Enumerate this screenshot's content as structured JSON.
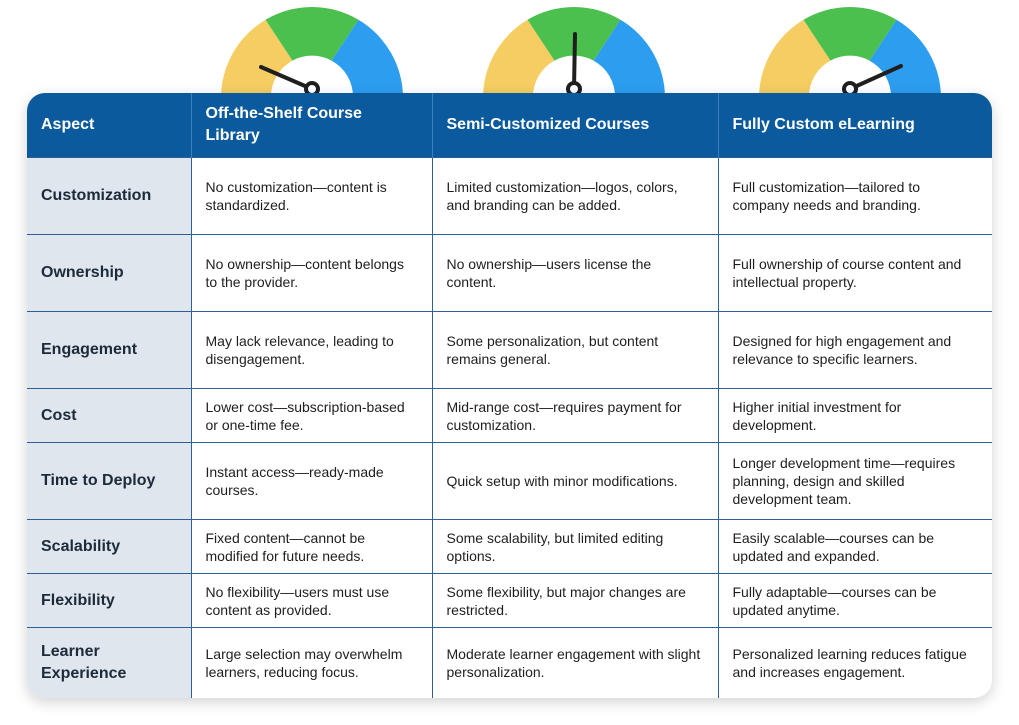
{
  "colors": {
    "header_bg": "#0c5a9e",
    "aspect_bg": "#dfe6ee",
    "gauge_yellow": "#f5cd63",
    "gauge_green": "#4cc04e",
    "gauge_blue": "#2d9df0",
    "needle": "#1f1f1f"
  },
  "gauges": [
    {
      "needle_direction": "low",
      "icon": "speedometer-icon"
    },
    {
      "needle_direction": "middle",
      "icon": "speedometer-icon"
    },
    {
      "needle_direction": "high",
      "icon": "speedometer-icon"
    }
  ],
  "table": {
    "headers": [
      "Aspect",
      "Off-the-Shelf Course Library",
      "Semi-Customized Courses",
      "Fully Custom eLearning"
    ],
    "rows": [
      {
        "aspect": "Customization",
        "cells": [
          "No customization—content is standardized.",
          "Limited customization—logos, colors, and branding can be added.",
          "Full customization—tailored to company needs and branding."
        ]
      },
      {
        "aspect": "Ownership",
        "cells": [
          "No ownership—content belongs to the provider.",
          "No ownership—users license the content.",
          "Full ownership of course content and intellectual property."
        ]
      },
      {
        "aspect": "Engagement",
        "cells": [
          "May lack relevance, leading to disengagement.",
          "Some personalization, but content remains general.",
          "Designed for high engagement and relevance to specific learners."
        ]
      },
      {
        "aspect": "Cost",
        "cells": [
          "Lower cost—subscription-based or one-time fee.",
          "Mid-range cost—requires payment for customization.",
          "Higher initial investment for development."
        ]
      },
      {
        "aspect": "Time to Deploy",
        "cells": [
          "Instant access—ready-made courses.",
          "Quick setup with minor modifications.",
          "Longer development time—requires planning, design and skilled development team."
        ]
      },
      {
        "aspect": "Scalability",
        "cells": [
          "Fixed content—cannot be modified for future needs.",
          "Some scalability, but limited editing options.",
          "Easily scalable—courses can be updated and expanded."
        ]
      },
      {
        "aspect": "Flexibility",
        "cells": [
          "No flexibility—users must use content as provided.",
          "Some flexibility, but major changes are restricted.",
          "Fully adaptable—courses can be updated anytime."
        ]
      },
      {
        "aspect": "Learner Experience",
        "cells": [
          "Large selection may overwhelm learners, reducing focus.",
          "Moderate learner engagement with slight personalization.",
          "Personalized learning reduces fatigue and increases engagement."
        ]
      }
    ]
  }
}
